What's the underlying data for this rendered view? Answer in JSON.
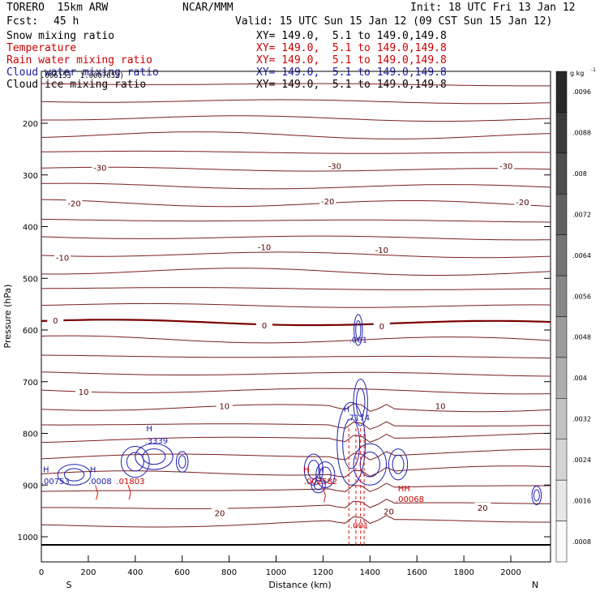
{
  "header": {
    "model": "TORERO  15km ARW",
    "org": "NCAR/MMM",
    "init": "Init: 18 UTC Fri 13 Jan 12",
    "fcst_label": "Fcst:",
    "fcst_value": "45 h",
    "valid": "Valid: 15 UTC Sun 15 Jan 12 (09 CST Sun 15 Jan 12)"
  },
  "fields": [
    {
      "name": "Snow mixing ratio",
      "xy": "XY= 149.0,  5.1 to 149.0,149.8",
      "color": "#000000"
    },
    {
      "name": "Temperature",
      "xy": "XY= 149.0,  5.1 to 149.0,149.8",
      "color": "#cc0000"
    },
    {
      "name": "Rain water mixing ratio",
      "xy": "XY= 149.0,  5.1 to 149.0,149.8",
      "color": "#cc0000"
    },
    {
      "name": "Cloud water mixing ratio",
      "xy": "XY= 149.0,  5.1 to 149.0,149.8",
      "color": "#1a1aa8"
    },
    {
      "name": "Cloud ice mixing ratio",
      "xy": "XY= 149.0,  5.1 to 149.0,149.8",
      "color": "#000000"
    }
  ],
  "overlay_note": ".006153  1.0007652)",
  "chart_data": {
    "type": "contour",
    "xlabel": "Distance (km)",
    "ylabel": "Pressure (hPa)",
    "x_ticks": [
      0,
      200,
      400,
      600,
      800,
      1000,
      1200,
      1400,
      1600,
      1800,
      2000
    ],
    "x_range": [
      0,
      2170
    ],
    "y_ticks": [
      200,
      300,
      400,
      500,
      600,
      700,
      800,
      900,
      1000
    ],
    "y_range": [
      1050,
      100
    ],
    "end_labels": {
      "left": "S",
      "right": "N"
    },
    "colorbar": {
      "unit": "g kg",
      "unit_exp": "-1",
      "ticks": [
        ".0096",
        ".0088",
        ".008",
        ".0072",
        ".0064",
        ".0056",
        ".0048",
        ".004",
        ".0032",
        ".0024",
        ".0016",
        ".0008"
      ]
    },
    "temperature_contour_labels": [
      {
        "text": "-30",
        "x": 250,
        "p": 287
      },
      {
        "text": "-30",
        "x": 1250,
        "p": 284
      },
      {
        "text": "-30",
        "x": 1980,
        "p": 284
      },
      {
        "text": "-20",
        "x": 140,
        "p": 356
      },
      {
        "text": "-20",
        "x": 1220,
        "p": 352
      },
      {
        "text": "-20",
        "x": 2050,
        "p": 354
      },
      {
        "text": "-10",
        "x": 90,
        "p": 461
      },
      {
        "text": "-10",
        "x": 950,
        "p": 441
      },
      {
        "text": "-10",
        "x": 1450,
        "p": 446
      },
      {
        "text": "0",
        "x": 60,
        "p": 583
      },
      {
        "text": "0",
        "x": 950,
        "p": 592
      },
      {
        "text": "0",
        "x": 1450,
        "p": 594
      },
      {
        "text": "10",
        "x": 180,
        "p": 721
      },
      {
        "text": "10",
        "x": 780,
        "p": 748
      },
      {
        "text": "10",
        "x": 1700,
        "p": 748
      },
      {
        "text": "20",
        "x": 760,
        "p": 955
      },
      {
        "text": "20",
        "x": 1480,
        "p": 952
      },
      {
        "text": "20",
        "x": 1880,
        "p": 945
      }
    ],
    "mixing_ratio_labels": [
      {
        "text": "H",
        "x": 460,
        "p": 790,
        "color": "#1a1aa8"
      },
      {
        "text": ".3339",
        "x": 490,
        "p": 813,
        "color": "#1a1aa8"
      },
      {
        "text": "H",
        "x": 20,
        "p": 869,
        "color": "#1a1aa8"
      },
      {
        "text": ".00753",
        "x": 60,
        "p": 892,
        "color": "#1a1aa8"
      },
      {
        "text": "H",
        "x": 220,
        "p": 869,
        "color": "#1a1aa8"
      },
      {
        "text": ".0008",
        "x": 250,
        "p": 892,
        "color": "#1a1aa8"
      },
      {
        "text": ".01803",
        "x": 380,
        "p": 892,
        "color": "#cc0000"
      },
      {
        "text": "H",
        "x": 1130,
        "p": 869,
        "color": "#cc0000"
      },
      {
        "text": "H",
        "x": 1190,
        "p": 869,
        "color": "#1a1aa8"
      },
      {
        "text": ".002582",
        "x": 1190,
        "p": 892,
        "color": "#cc0000"
      },
      {
        "text": "H",
        "x": 1300,
        "p": 752,
        "color": "#1a1aa8"
      },
      {
        "text": ".7174",
        "x": 1350,
        "p": 769,
        "color": "#1a1aa8"
      },
      {
        "text": "HH",
        "x": 1545,
        "p": 906,
        "color": "#cc0000"
      },
      {
        "text": ".00068",
        "x": 1570,
        "p": 926,
        "color": "#cc0000"
      },
      {
        "text": ".001",
        "x": 1355,
        "p": 977,
        "color": "#cc0000"
      },
      {
        "text": ".001",
        "x": 1350,
        "p": 618,
        "color": "#1a1aa8"
      }
    ]
  }
}
